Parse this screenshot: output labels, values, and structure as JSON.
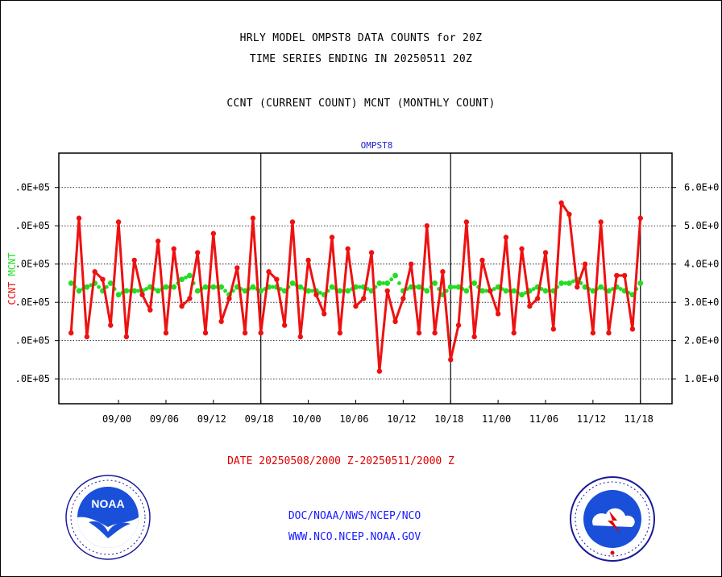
{
  "header": {
    "title_line1": "HRLY MODEL OMPST8 DATA COUNTS for 20Z",
    "title_line2": "TIME SERIES ENDING IN 20250511 20Z",
    "title_line3": "CCNT (CURRENT COUNT) MCNT (MONTHLY COUNT)"
  },
  "footer": {
    "date_range": "DATE 20250508/2000 Z-20250511/2000 Z",
    "credit1": "DOC/NOAA/NWS/NCEP/NCO",
    "credit2": "WWW.NCO.NCEP.NOAA.GOV"
  },
  "logos": {
    "left": {
      "icon": "noaa-logo",
      "text": "NOAA"
    },
    "right": {
      "icon": "nws-logo"
    }
  },
  "colors": {
    "ccnt": "#ee1111",
    "mcnt": "#22dd22",
    "axis": "#000000",
    "series_label": "#2222cc"
  },
  "chart_data": {
    "type": "line",
    "title": "OMPST8",
    "ylabel_left": "CCNT",
    "ylabel_right": "MCNT",
    "ylim": [
      0.35,
      6.9
    ],
    "y_tick_values": [
      1,
      2,
      3,
      4,
      5,
      6
    ],
    "y_tick_labels_left": [
      ".0E+05",
      ".0E+05",
      ".0E+05",
      ".0E+05",
      ".0E+05",
      ".0E+05"
    ],
    "y_tick_labels_right": [
      "1.0E+0",
      "2.0E+0",
      "3.0E+0",
      "4.0E+0",
      "5.0E+0",
      "6.0E+0"
    ],
    "x_tick_labels": [
      "09/00",
      "09/06",
      "09/12",
      "09/18",
      "10/00",
      "10/06",
      "10/12",
      "10/18",
      "11/00",
      "11/06",
      "11/12",
      "11/18"
    ],
    "x_tick_hours": [
      6,
      12,
      18,
      24,
      30,
      36,
      42,
      48,
      54,
      60,
      66,
      72
    ],
    "day_boundaries_hours": [
      24,
      48,
      72
    ],
    "grid": "horizontal dotted",
    "series": [
      {
        "name": "CCNT",
        "hours": [
          0,
          1,
          2,
          3,
          4,
          5,
          6,
          7,
          8,
          9,
          10,
          11,
          12,
          13,
          14,
          15,
          16,
          17,
          18,
          19,
          20,
          21,
          22,
          23,
          24,
          25,
          26,
          27,
          28,
          29,
          30,
          31,
          32,
          33,
          34,
          35,
          36,
          37,
          38,
          39,
          40,
          41,
          42,
          43,
          44,
          45,
          46,
          47,
          48,
          49,
          50,
          51,
          52,
          53,
          54,
          55,
          56,
          57,
          58,
          59,
          60,
          61,
          62,
          63,
          64,
          65,
          66,
          67,
          68,
          69,
          70,
          71,
          72,
          73,
          74,
          75,
          76
        ],
        "values": [
          2.2,
          5.2,
          2.1,
          3.8,
          3.6,
          2.4,
          5.1,
          2.1,
          4.1,
          3.2,
          2.8,
          4.6,
          2.2,
          4.4,
          2.9,
          3.1,
          4.3,
          2.2,
          4.8,
          2.5,
          3.1,
          3.9,
          2.2,
          5.2,
          2.2,
          3.8,
          3.6,
          2.4,
          5.1,
          2.1,
          4.1,
          3.2,
          2.7,
          4.7,
          2.2,
          4.4,
          2.9,
          3.1,
          4.3,
          1.2,
          3.3,
          2.5,
          3.1,
          4.0,
          2.2,
          5.0,
          2.2,
          3.8,
          1.5,
          2.4,
          5.1,
          2.1,
          4.1,
          3.3,
          2.7,
          4.7,
          2.2,
          4.4,
          2.9,
          3.1,
          4.3,
          2.3,
          5.6,
          5.3,
          3.4,
          4.0,
          2.2,
          5.1,
          2.2,
          3.7,
          3.7,
          2.3,
          5.2,
          null,
          null,
          null,
          null
        ]
      },
      {
        "name": "MCNT",
        "hours": [
          0,
          1,
          2,
          3,
          4,
          5,
          6,
          7,
          8,
          9,
          10,
          11,
          12,
          13,
          14,
          15,
          16,
          17,
          18,
          19,
          20,
          21,
          22,
          23,
          24,
          25,
          26,
          27,
          28,
          29,
          30,
          31,
          32,
          33,
          34,
          35,
          36,
          37,
          38,
          39,
          40,
          41,
          42,
          43,
          44,
          45,
          46,
          47,
          48,
          49,
          50,
          51,
          52,
          53,
          54,
          55,
          56,
          57,
          58,
          59,
          60,
          61,
          62,
          63,
          64,
          65,
          66,
          67,
          68,
          69,
          70,
          71,
          72,
          73,
          74,
          75,
          76
        ],
        "values": [
          3.5,
          3.3,
          3.4,
          3.5,
          3.3,
          3.5,
          3.2,
          3.3,
          3.3,
          3.3,
          3.4,
          3.3,
          3.4,
          3.4,
          3.6,
          3.7,
          3.3,
          3.4,
          3.4,
          3.4,
          3.2,
          3.4,
          3.3,
          3.4,
          3.3,
          3.4,
          3.4,
          3.3,
          3.5,
          3.4,
          3.3,
          3.3,
          3.2,
          3.4,
          3.3,
          3.3,
          3.4,
          3.4,
          3.3,
          3.5,
          3.5,
          3.7,
          3.3,
          3.4,
          3.4,
          3.3,
          3.5,
          3.2,
          3.4,
          3.4,
          3.3,
          3.5,
          3.3,
          3.3,
          3.4,
          3.3,
          3.3,
          3.2,
          3.3,
          3.4,
          3.3,
          3.3,
          3.5,
          3.5,
          3.6,
          3.4,
          3.3,
          3.4,
          3.3,
          3.4,
          3.3,
          3.2,
          3.5,
          null,
          null,
          null,
          null
        ]
      }
    ]
  }
}
